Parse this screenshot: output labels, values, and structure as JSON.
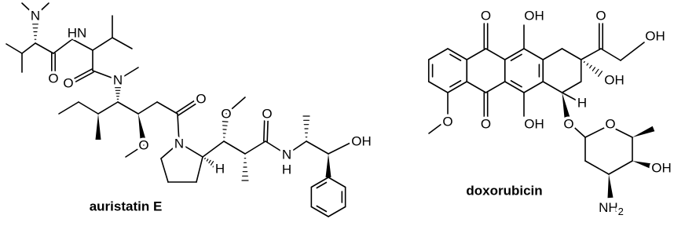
{
  "auristatin_e": {
    "name": "auristatin E",
    "atoms": [
      "N",
      "HN",
      "O",
      "O",
      "N",
      "O",
      "O",
      "O",
      "N",
      "H",
      "O",
      "N",
      "H",
      "OH"
    ]
  },
  "doxorubicin": {
    "name": "doxorubicin",
    "atoms": [
      "O",
      "OH",
      "O",
      "OH",
      "O",
      "OH",
      "O",
      "OH",
      "H",
      "O",
      "O",
      "OH",
      "NH",
      "2"
    ]
  }
}
